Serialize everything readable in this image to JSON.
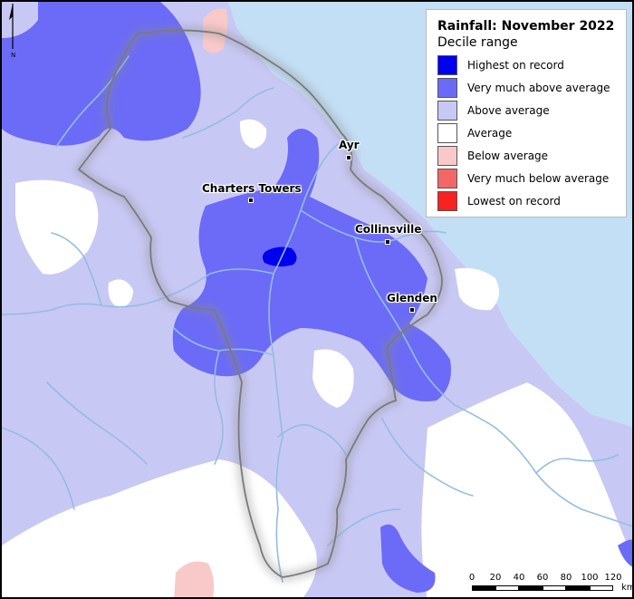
{
  "legend": {
    "title": "Rainfall: November 2022",
    "subtitle": "Decile range",
    "items": [
      {
        "label": "Highest on record",
        "color": "#0000ee"
      },
      {
        "label": "Very much above average",
        "color": "#6b6bf7"
      },
      {
        "label": "Above average",
        "color": "#c8c8f5"
      },
      {
        "label": "Average",
        "color": "#ffffff"
      },
      {
        "label": "Below average",
        "color": "#f9c9c9"
      },
      {
        "label": "Very much below average",
        "color": "#f36767"
      },
      {
        "label": "Lowest on record",
        "color": "#f82222"
      }
    ]
  },
  "towns": [
    {
      "name": "Ayr"
    },
    {
      "name": "Charters Towers"
    },
    {
      "name": "Collinsville"
    },
    {
      "name": "Glenden"
    }
  ],
  "north_arrow": {
    "letter": "N"
  },
  "scale": {
    "ticks": [
      "0",
      "20",
      "40",
      "60",
      "80",
      "100",
      "120"
    ],
    "unit": "km"
  },
  "colors": {
    "sea": "#c3dff5",
    "river": "#93bde0",
    "boundary": "#7a7a7a"
  }
}
